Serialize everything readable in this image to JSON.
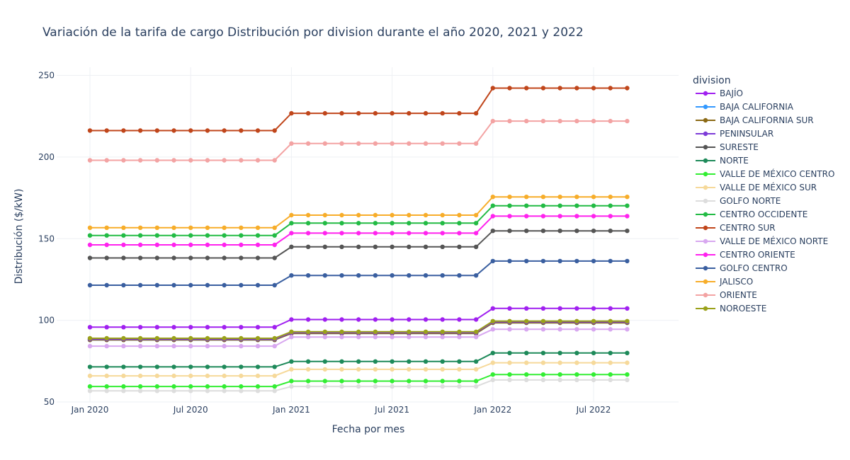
{
  "chart_data": {
    "type": "line",
    "title": "Variación de la tarifa de cargo Distribución por division durante el año 2020, 2021 y 2022",
    "xlabel": "Fecha por mes",
    "ylabel": "Distribución ($/kW)",
    "x_start": "2020-01",
    "x_months": 33,
    "x_ticks": [
      {
        "month_index": 0,
        "label": "Jan 2020"
      },
      {
        "month_index": 6,
        "label": "Jul 2020"
      },
      {
        "month_index": 12,
        "label": "Jan 2021"
      },
      {
        "month_index": 18,
        "label": "Jul 2021"
      },
      {
        "month_index": 24,
        "label": "Jan 2022"
      },
      {
        "month_index": 30,
        "label": "Jul 2022"
      }
    ],
    "ylim": [
      50,
      255
    ],
    "y_ticks": [
      50,
      100,
      150,
      200,
      250
    ],
    "grid": true,
    "legend_title": "division",
    "legend_position": "right",
    "series": [
      {
        "name": "BAJÍO",
        "color": "#a020f0",
        "values": [
          95.8,
          100.5,
          107.3
        ]
      },
      {
        "name": "BAJA CALIFORNIA",
        "color": "#3399ff",
        "values": [
          88.0,
          92.0,
          98.5
        ]
      },
      {
        "name": "BAJA CALIFORNIA SUR",
        "color": "#8b6914",
        "values": [
          88.0,
          92.0,
          98.5
        ]
      },
      {
        "name": "PENINSULAR",
        "color": "#7d3cd8",
        "values": [
          88.5,
          92.5,
          99.0
        ]
      },
      {
        "name": "SURESTE",
        "color": "#555555",
        "values": [
          138.2,
          145.0,
          154.8
        ]
      },
      {
        "name": "NORTE",
        "color": "#1e8a5a",
        "values": [
          71.5,
          74.8,
          80.0
        ]
      },
      {
        "name": "VALLE DE MÉXICO CENTRO",
        "color": "#33ee33",
        "values": [
          59.5,
          62.8,
          66.8
        ]
      },
      {
        "name": "VALLE DE MÉXICO SUR",
        "color": "#f6d99a",
        "values": [
          66.0,
          70.0,
          74.0
        ]
      },
      {
        "name": "GOLFO NORTE",
        "color": "#dddddd",
        "values": [
          56.8,
          59.5,
          63.5
        ]
      },
      {
        "name": "CENTRO OCCIDENTE",
        "color": "#22bb44",
        "values": [
          152.0,
          159.5,
          170.2
        ]
      },
      {
        "name": "CENTRO SUR",
        "color": "#c0461b",
        "values": [
          216.2,
          226.8,
          242.2
        ]
      },
      {
        "name": "VALLE DE MÉXICO NORTE",
        "color": "#d8a8f0",
        "values": [
          84.2,
          89.8,
          94.5
        ]
      },
      {
        "name": "CENTRO ORIENTE",
        "color": "#ff22ee",
        "values": [
          146.2,
          153.4,
          163.8
        ]
      },
      {
        "name": "GOLFO CENTRO",
        "color": "#3a5fa0",
        "values": [
          121.5,
          127.5,
          136.3
        ]
      },
      {
        "name": "JALISCO",
        "color": "#f7ad2a",
        "values": [
          156.7,
          164.4,
          175.6
        ]
      },
      {
        "name": "ORIENTE",
        "color": "#f3a3a3",
        "values": [
          198.0,
          208.3,
          222.0
        ]
      },
      {
        "name": "NOROESTE",
        "color": "#9aa11a",
        "values": [
          89.0,
          93.0,
          99.5
        ]
      }
    ]
  }
}
